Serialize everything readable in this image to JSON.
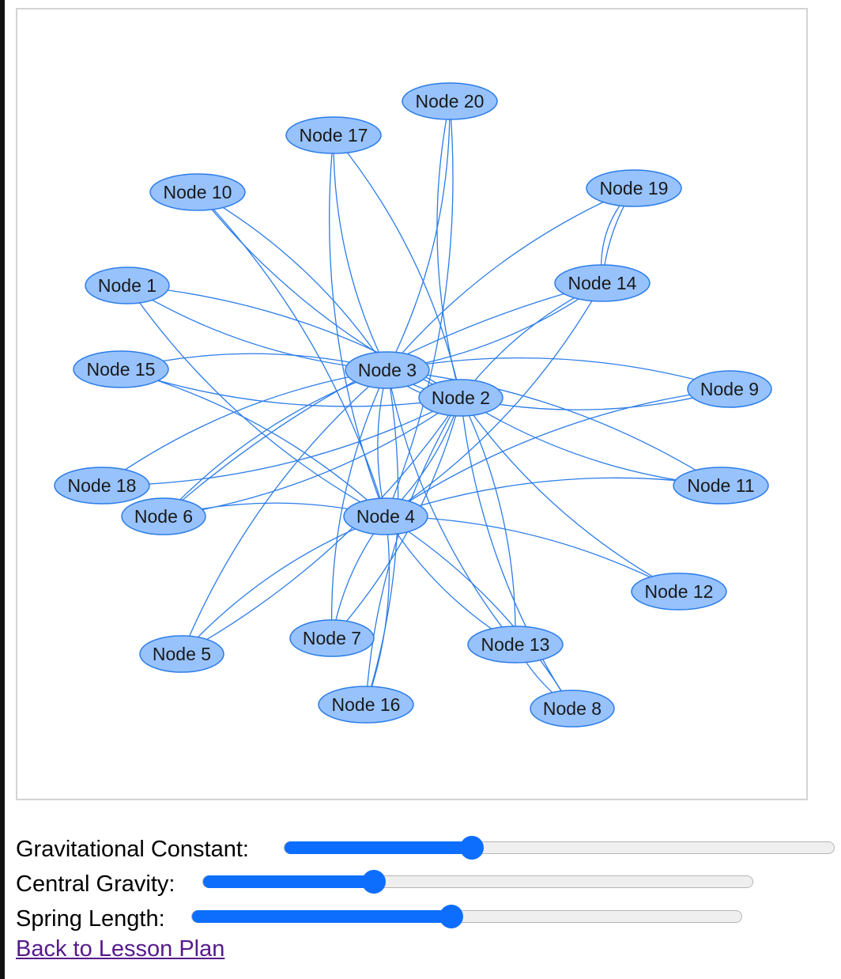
{
  "graph": {
    "nodes": [
      {
        "id": "n1",
        "label": "Node 1"
      },
      {
        "id": "n2",
        "label": "Node 2"
      },
      {
        "id": "n3",
        "label": "Node 3"
      },
      {
        "id": "n4",
        "label": "Node 4"
      },
      {
        "id": "n5",
        "label": "Node 5"
      },
      {
        "id": "n6",
        "label": "Node 6"
      },
      {
        "id": "n7",
        "label": "Node 7"
      },
      {
        "id": "n8",
        "label": "Node 8"
      },
      {
        "id": "n9",
        "label": "Node 9"
      },
      {
        "id": "n10",
        "label": "Node 10"
      },
      {
        "id": "n11",
        "label": "Node 11"
      },
      {
        "id": "n12",
        "label": "Node 12"
      },
      {
        "id": "n13",
        "label": "Node 13"
      },
      {
        "id": "n14",
        "label": "Node 14"
      },
      {
        "id": "n15",
        "label": "Node 15"
      },
      {
        "id": "n16",
        "label": "Node 16"
      },
      {
        "id": "n17",
        "label": "Node 17"
      },
      {
        "id": "n18",
        "label": "Node 18"
      },
      {
        "id": "n19",
        "label": "Node 19"
      },
      {
        "id": "n20",
        "label": "Node 20"
      }
    ],
    "edges": [
      [
        "n1",
        "n3"
      ],
      [
        "n1",
        "n2"
      ],
      [
        "n1",
        "n4"
      ],
      [
        "n10",
        "n3"
      ],
      [
        "n10",
        "n2"
      ],
      [
        "n10",
        "n4"
      ],
      [
        "n17",
        "n3"
      ],
      [
        "n17",
        "n2"
      ],
      [
        "n17",
        "n4"
      ],
      [
        "n20",
        "n3"
      ],
      [
        "n20",
        "n2"
      ],
      [
        "n20",
        "n4"
      ],
      [
        "n19",
        "n14"
      ],
      [
        "n19",
        "n14"
      ],
      [
        "n19",
        "n3"
      ],
      [
        "n14",
        "n3"
      ],
      [
        "n14",
        "n2"
      ],
      [
        "n14",
        "n4"
      ],
      [
        "n14",
        "n6"
      ],
      [
        "n15",
        "n3"
      ],
      [
        "n15",
        "n2"
      ],
      [
        "n15",
        "n4"
      ],
      [
        "n9",
        "n3"
      ],
      [
        "n9",
        "n2"
      ],
      [
        "n9",
        "n4"
      ],
      [
        "n18",
        "n3"
      ],
      [
        "n18",
        "n2"
      ],
      [
        "n6",
        "n3"
      ],
      [
        "n6",
        "n2"
      ],
      [
        "n6",
        "n4"
      ],
      [
        "n11",
        "n3"
      ],
      [
        "n11",
        "n2"
      ],
      [
        "n11",
        "n4"
      ],
      [
        "n12",
        "n2"
      ],
      [
        "n12",
        "n4"
      ],
      [
        "n13",
        "n3"
      ],
      [
        "n13",
        "n2"
      ],
      [
        "n13",
        "n4"
      ],
      [
        "n13",
        "n8"
      ],
      [
        "n8",
        "n2"
      ],
      [
        "n8",
        "n4"
      ],
      [
        "n7",
        "n3"
      ],
      [
        "n7",
        "n2"
      ],
      [
        "n7",
        "n4"
      ],
      [
        "n16",
        "n3"
      ],
      [
        "n16",
        "n2"
      ],
      [
        "n16",
        "n4"
      ],
      [
        "n5",
        "n3"
      ],
      [
        "n5",
        "n2"
      ],
      [
        "n5",
        "n4"
      ],
      [
        "n3",
        "n2"
      ],
      [
        "n3",
        "n2"
      ],
      [
        "n3",
        "n4"
      ],
      [
        "n2",
        "n4"
      ]
    ],
    "colors": {
      "node_fill": "#97c2fc",
      "node_border": "#2b7ce9",
      "edge": "#2b7ce9"
    }
  },
  "controls": {
    "gravitational_constant": {
      "label": "Gravitational Constant:",
      "fraction": 0.34
    },
    "central_gravity": {
      "label": "Central Gravity:",
      "fraction": 0.31
    },
    "spring_length": {
      "label": "Spring Length:",
      "fraction": 0.47
    }
  },
  "back_link": {
    "label": "Back to Lesson Plan"
  },
  "accent_color": "#0d6efd"
}
